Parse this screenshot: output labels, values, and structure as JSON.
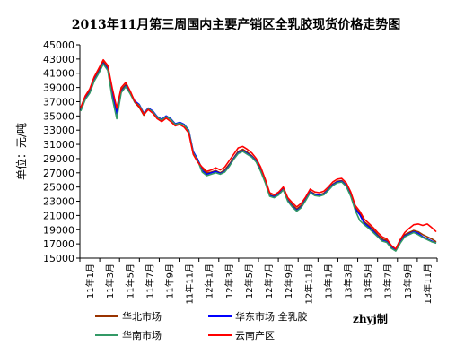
{
  "chart_data": {
    "type": "line",
    "title": "2013年11月第三周国内主要产销区全乳胶现货价格走势图",
    "ylabel": "单位：元/吨",
    "ylim": [
      15000,
      45000
    ],
    "yticks": [
      15000,
      17000,
      19000,
      21000,
      23000,
      25000,
      27000,
      29000,
      31000,
      33000,
      35000,
      37000,
      39000,
      41000,
      43000,
      45000
    ],
    "x_ticks": [
      "11年1月",
      "11年3月",
      "11年5月",
      "11年7月",
      "11年9月",
      "11年11月",
      "12年1月",
      "12年3月",
      "12年5月",
      "12年7月",
      "12年9月",
      "12年11月",
      "13年1月",
      "13年3月",
      "13年5月",
      "13年7月",
      "13年9月",
      "13年11月"
    ],
    "grid": false,
    "legend": "bottom",
    "watermark": "zhyj制",
    "series": [
      {
        "name": "华北市场",
        "color": "#993300",
        "values": [
          36000,
          37600,
          38500,
          40200,
          41400,
          42600,
          41800,
          38600,
          35800,
          38700,
          39400,
          38200,
          36900,
          36200,
          35100,
          36000,
          35600,
          34700,
          34300,
          34900,
          34500,
          33800,
          34000,
          33700,
          32800,
          29800,
          28800,
          27600,
          27000,
          27100,
          27300,
          27000,
          27400,
          28200,
          29100,
          30000,
          30300,
          29900,
          29400,
          28700,
          27400,
          25800,
          23900,
          23700,
          24100,
          24800,
          23200,
          22500,
          21900,
          22400,
          23300,
          24400,
          24000,
          23900,
          24100,
          24700,
          25400,
          25800,
          25900,
          25300,
          24000,
          22100,
          21300,
          20100,
          19600,
          19000,
          18300,
          17700,
          17500,
          16600,
          16200,
          17400,
          18300,
          18600,
          18900,
          18700,
          18300,
          18000,
          17700,
          17300
        ]
      },
      {
        "name": "华东市场 全乳胶",
        "color": "#0000ff",
        "values": [
          35800,
          37400,
          38300,
          40000,
          41100,
          42400,
          41600,
          38300,
          35300,
          38400,
          39200,
          38300,
          37100,
          36600,
          35400,
          36100,
          35700,
          34900,
          34500,
          35000,
          34600,
          33900,
          34100,
          33800,
          33000,
          30000,
          28900,
          27300,
          26800,
          27000,
          27200,
          26900,
          27200,
          28000,
          29000,
          29800,
          30100,
          29700,
          29300,
          28600,
          27300,
          25700,
          23800,
          23600,
          24000,
          24700,
          23100,
          22300,
          21700,
          22200,
          23200,
          24300,
          23900,
          23800,
          24000,
          24600,
          25300,
          25700,
          25800,
          25200,
          23800,
          21900,
          21100,
          19900,
          19400,
          18800,
          18100,
          17500,
          17300,
          16500,
          16100,
          17200,
          18100,
          18400,
          18700,
          18500,
          18000,
          17700,
          17400,
          17100
        ]
      },
      {
        "name": "华南市场",
        "color": "#339966",
        "values": [
          35700,
          37300,
          38200,
          39900,
          41000,
          42300,
          41400,
          37500,
          34600,
          38300,
          39100,
          38100,
          36900,
          36500,
          35300,
          36000,
          35600,
          34800,
          34400,
          34900,
          34500,
          33800,
          34000,
          33700,
          32900,
          29800,
          28700,
          27100,
          26600,
          26800,
          27000,
          26800,
          27100,
          27900,
          28900,
          29700,
          30000,
          29600,
          29200,
          28500,
          27200,
          25600,
          23700,
          23500,
          23900,
          24600,
          23000,
          22200,
          21600,
          22100,
          23100,
          24200,
          23800,
          23700,
          23900,
          24500,
          25200,
          25600,
          25700,
          25100,
          23700,
          21700,
          20300,
          19700,
          19200,
          18600,
          18000,
          17400,
          17200,
          16400,
          16000,
          17100,
          18000,
          18300,
          18600,
          18300,
          17900,
          17600,
          17300,
          17100
        ]
      },
      {
        "name": "云南产区",
        "color": "#ff0000",
        "values": [
          36200,
          37800,
          38800,
          40500,
          41700,
          42900,
          42100,
          38900,
          36100,
          39000,
          39700,
          38500,
          37000,
          36300,
          35200,
          35900,
          35400,
          34600,
          34200,
          34700,
          34200,
          33600,
          33800,
          33400,
          32600,
          29600,
          28500,
          27800,
          27200,
          27400,
          27700,
          27400,
          27800,
          28700,
          29600,
          30500,
          30700,
          30300,
          29800,
          29000,
          27800,
          26100,
          24200,
          23900,
          24300,
          25000,
          23500,
          22800,
          22200,
          22700,
          23600,
          24700,
          24300,
          24200,
          24400,
          25000,
          25700,
          26100,
          26200,
          25600,
          24300,
          22400,
          21600,
          20500,
          19900,
          19300,
          18600,
          18000,
          17700,
          16800,
          16300,
          17600,
          18600,
          19200,
          19700,
          19800,
          19600,
          19800,
          19300,
          18700
        ]
      }
    ]
  }
}
